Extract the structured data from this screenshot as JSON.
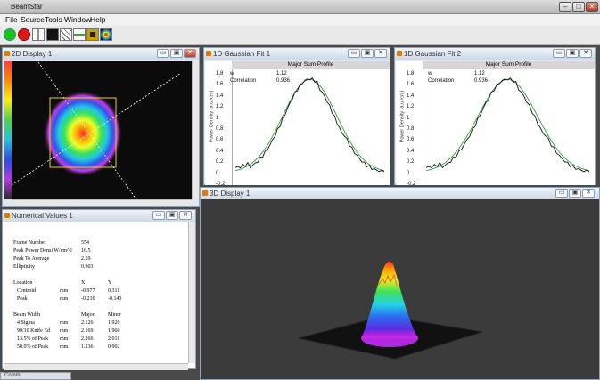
{
  "app": {
    "title": "BeamStar",
    "min": "–",
    "max": "□",
    "close": "✕"
  },
  "menu": [
    "File",
    "Source",
    "Tools",
    "Window",
    "Help"
  ],
  "toolbar_icons": [
    "green-dot-icon",
    "red-dot-icon",
    "layout-icon",
    "black-square-icon",
    "crosshair-icon",
    "sum-icon",
    "frame-icon",
    "beam-icon"
  ],
  "win_controls": {
    "min": "▭",
    "max": "▣",
    "close": "✕"
  },
  "display2d": {
    "title": "2D Display 1"
  },
  "gauss1": {
    "title": "1D Gaussian Fit 1",
    "header": "Major Sum Profile",
    "w_label": "w",
    "w_value": "1.12",
    "corr_label": "Correlation",
    "corr_value": "0.936",
    "ylabel": "Power Density (a.u./cm)",
    "yticks": [
      "1.8",
      "1.6",
      "1.4",
      "1.2",
      "1",
      "0.8",
      "0.6",
      "0.4",
      "0.2",
      "0",
      "-0.2"
    ]
  },
  "gauss2": {
    "title": "1D Gaussian Fit 2",
    "header": "Major Sum Profile",
    "w_label": "w",
    "w_value": "1.12",
    "corr_label": "Correlation",
    "corr_value": "0.936",
    "ylabel": "Power Density (a.u./cm)",
    "yticks": [
      "1.8",
      "1.6",
      "1.4",
      "1.2",
      "1",
      "0.8",
      "0.6",
      "0.4",
      "0.2",
      "0",
      "-0.2"
    ]
  },
  "display3d": {
    "title": "3D Display 1"
  },
  "numerical": {
    "title": "Numerical Values 1",
    "rows1": [
      {
        "label": "Frame Number",
        "unit": "",
        "v1": "554",
        "v2": ""
      },
      {
        "label": "Peak Power Densi W/cm^2",
        "unit": "",
        "v1": "16.5",
        "v2": ""
      },
      {
        "label": "Peak To Average",
        "unit": "",
        "v1": "2.59",
        "v2": ""
      },
      {
        "label": "Ellipticity",
        "unit": "",
        "v1": "0.903",
        "v2": ""
      }
    ],
    "loc_header": {
      "label": "Location",
      "c1": "X",
      "c2": "Y"
    },
    "rows2": [
      {
        "label": "Centroid",
        "unit": "mm",
        "v1": "-0.977",
        "v2": "0.311"
      },
      {
        "label": "Peak",
        "unit": "mm",
        "v1": "-0.210",
        "v2": "-0.143"
      }
    ],
    "bw_header": {
      "label": "Beam Width",
      "c1": "Major",
      "c2": "Minor"
    },
    "rows3": [
      {
        "label": "4 Sigma",
        "unit": "mm",
        "v1": "2.126",
        "v2": "1.920"
      },
      {
        "label": "90/10 Knife Ed",
        "unit": "mm",
        "v1": "2.169",
        "v2": "1.960"
      },
      {
        "label": "13.5% of Peak",
        "unit": "mm",
        "v1": "2.266",
        "v2": "2.011"
      },
      {
        "label": "50.0% of Peak",
        "unit": "mm",
        "v1": "1.236",
        "v2": "0.902"
      }
    ]
  },
  "taskbar_label": "Comm..."
}
